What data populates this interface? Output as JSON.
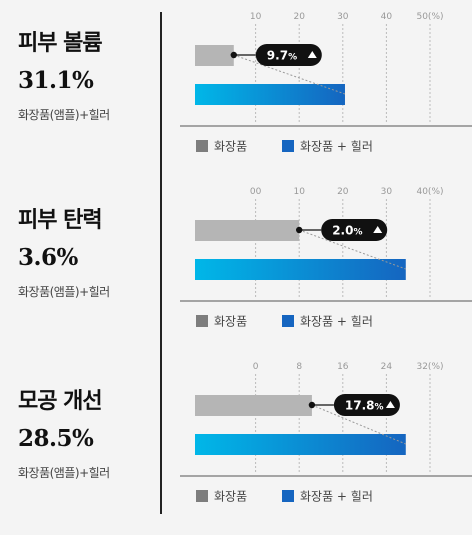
{
  "chart_data": [
    {
      "type": "bar",
      "title": "피부 볼륨",
      "stat": "31.1%",
      "note": "화장품(앰플)+힐러",
      "ticks": [
        "10",
        "20",
        "30",
        "40",
        "50(%)"
      ],
      "xlim": [
        0,
        50
      ],
      "series": [
        {
          "name": "화장품",
          "value": 5,
          "color": "#b5b5b5"
        },
        {
          "name": "화장품 + 힐러",
          "value": 30.5,
          "color": "#1e88e5"
        }
      ],
      "difference_label": "9.7",
      "difference_unit": "%"
    },
    {
      "type": "bar",
      "title": "피부 탄력",
      "stat": "3.6%",
      "note": "화장품(앰플)+힐러",
      "ticks": [
        "00",
        "10",
        "20",
        "30",
        "40(%)"
      ],
      "xlim": [
        -5,
        40
      ],
      "series": [
        {
          "name": "화장품",
          "value": 13,
          "color": "#b5b5b5"
        },
        {
          "name": "화장품 + 힐러",
          "value": 35,
          "color": "#1e88e5"
        }
      ],
      "difference_label": "2.0",
      "difference_unit": "%"
    },
    {
      "type": "bar",
      "title": "모공 개선",
      "stat": "28.5%",
      "note": "화장품(앰플)+힐러",
      "ticks": [
        "0",
        "8",
        "16",
        "24",
        "32(%)"
      ],
      "xlim": [
        -4,
        32
      ],
      "series": [
        {
          "name": "화장품",
          "value": 12.5,
          "color": "#b5b5b5"
        },
        {
          "name": "화장품 + 힐러",
          "value": 28,
          "color": "#1e88e5"
        }
      ],
      "difference_label": "17.8",
      "difference_unit": "%"
    }
  ],
  "colors": {
    "gray_bar": "#b5b5b5",
    "blue_start": "#00b7e8",
    "blue_end": "#1565c0",
    "legend_gray": "#7d7d7d",
    "legend_blue": "#1565c0",
    "pill": "#111111"
  }
}
